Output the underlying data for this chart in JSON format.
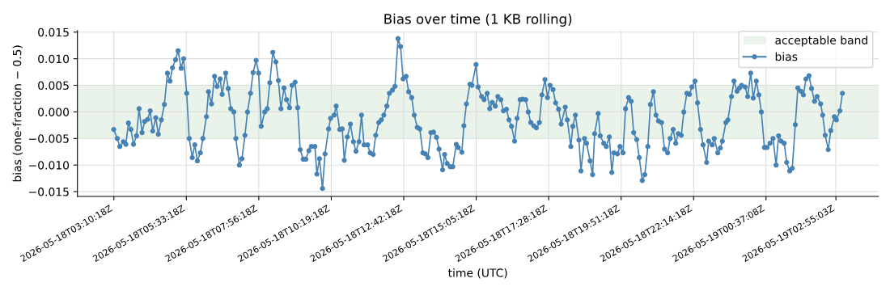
{
  "chart_data": {
    "type": "line",
    "title": "Bias over time (1 KB rolling)",
    "xlabel": "time (UTC)",
    "ylabel": "bias (one-fraction − 0.5)",
    "xlim": [
      "2026-05-18T01:58:24",
      "2026-05-19T04:19"
    ],
    "xticks": [
      {
        "value": "2026-05-18T03:10:18",
        "label": "2026-05-18T03:10:18Z"
      },
      {
        "value": "2026-05-18T05:33:18",
        "label": "2026-05-18T05:33:18Z"
      },
      {
        "value": "2026-05-18T07:56:18",
        "label": "2026-05-18T07:56:18Z"
      },
      {
        "value": "2026-05-18T10:19:18",
        "label": "2026-05-18T10:19:18Z"
      },
      {
        "value": "2026-05-18T12:42:18",
        "label": "2026-05-18T12:42:18Z"
      },
      {
        "value": "2026-05-18T15:05:18",
        "label": "2026-05-18T15:05:18Z"
      },
      {
        "value": "2026-05-18T17:28:18",
        "label": "2026-05-18T17:28:18Z"
      },
      {
        "value": "2026-05-18T19:51:18",
        "label": "2026-05-18T19:51:18Z"
      },
      {
        "value": "2026-05-18T22:14:18",
        "label": "2026-05-18T22:14:18Z"
      },
      {
        "value": "2026-05-19T00:37:08",
        "label": "2026-05-19T00:37:08Z"
      },
      {
        "value": "2026-05-19T02:55:03",
        "label": "2026-05-19T02:55:03Z"
      }
    ],
    "ylim": [
      -0.0159,
      0.0153
    ],
    "yticks": [
      {
        "value": -0.015,
        "label": "−0.015"
      },
      {
        "value": -0.01,
        "label": "−0.010"
      },
      {
        "value": -0.005,
        "label": "−0.005"
      },
      {
        "value": 0,
        "label": "0.000"
      },
      {
        "value": 0.005,
        "label": "0.005"
      },
      {
        "value": 0.01,
        "label": "0.010"
      },
      {
        "value": 0.015,
        "label": "0.015"
      }
    ],
    "grid": true,
    "legend": "top right",
    "marker": "circle",
    "line_style": "solid",
    "bands": [
      {
        "axis": "y",
        "from": -0.005,
        "to": 0.005,
        "label": "acceptable band",
        "color": "#e9f3e9"
      }
    ],
    "series": [
      {
        "name": "bias",
        "color": "#4682b4",
        "x": [
          "2026-05-18T03:10",
          "2026-05-18T03:17",
          "2026-05-18T03:22",
          "2026-05-18T03:29",
          "2026-05-18T03:34",
          "2026-05-18T03:39",
          "2026-05-18T03:44",
          "2026-05-18T03:49",
          "2026-05-18T03:55",
          "2026-05-18T04:00",
          "2026-05-18T04:06",
          "2026-05-18T04:11",
          "2026-05-18T04:17",
          "2026-05-18T04:22",
          "2026-05-18T04:27",
          "2026-05-18T04:33",
          "2026-05-18T04:38",
          "2026-05-18T04:44",
          "2026-05-18T04:50",
          "2026-05-18T04:56",
          "2026-05-18T05:01",
          "2026-05-18T05:06",
          "2026-05-18T05:12",
          "2026-05-18T05:17",
          "2026-05-18T05:23",
          "2026-05-18T05:28",
          "2026-05-18T05:34",
          "2026-05-18T05:39",
          "2026-05-18T05:45",
          "2026-05-18T05:50",
          "2026-05-18T05:55",
          "2026-05-18T06:01",
          "2026-05-18T06:06",
          "2026-05-18T06:13",
          "2026-05-18T06:17",
          "2026-05-18T06:23",
          "2026-05-18T06:29",
          "2026-05-18T06:34",
          "2026-05-18T06:40",
          "2026-05-18T06:44",
          "2026-05-18T06:51",
          "2026-05-18T06:56",
          "2026-05-18T07:01",
          "2026-05-18T07:07",
          "2026-05-18T07:11",
          "2026-05-18T07:18",
          "2026-05-18T07:23",
          "2026-05-18T07:29",
          "2026-05-18T07:34",
          "2026-05-18T07:40",
          "2026-05-18T07:45",
          "2026-05-18T07:51",
          "2026-05-18T07:56",
          "2026-05-18T08:01",
          "2026-05-18T08:08",
          "2026-05-18T08:13",
          "2026-05-18T08:18",
          "2026-05-18T08:24",
          "2026-05-18T08:30",
          "2026-05-18T08:35",
          "2026-05-18T08:40",
          "2026-05-18T08:46",
          "2026-05-18T08:51",
          "2026-05-18T08:57",
          "2026-05-18T09:02",
          "2026-05-18T09:08",
          "2026-05-18T09:13",
          "2026-05-18T09:18",
          "2026-05-18T09:24",
          "2026-05-18T09:29",
          "2026-05-18T09:35",
          "2026-05-18T09:40",
          "2026-05-18T09:47",
          "2026-05-18T09:51",
          "2026-05-18T09:56",
          "2026-05-18T10:02",
          "2026-05-18T10:07",
          "2026-05-18T10:14",
          "2026-05-18T10:18",
          "2026-05-18T10:25",
          "2026-05-18T10:29",
          "2026-05-18T10:36",
          "2026-05-18T10:41",
          "2026-05-18T10:45",
          "2026-05-18T10:51",
          "2026-05-18T10:57",
          "2026-05-18T11:03",
          "2026-05-18T11:08",
          "2026-05-18T11:14",
          "2026-05-18T11:19",
          "2026-05-18T11:24",
          "2026-05-18T11:31",
          "2026-05-18T11:36",
          "2026-05-18T11:42",
          "2026-05-18T11:47",
          "2026-05-18T11:53",
          "2026-05-18T11:58",
          "2026-05-18T12:03",
          "2026-05-18T12:09",
          "2026-05-18T12:14",
          "2026-05-18T12:20",
          "2026-05-18T12:25",
          "2026-05-18T12:31",
          "2026-05-18T12:36",
          "2026-05-18T12:41",
          "2026-05-18T12:47",
          "2026-05-18T12:52",
          "2026-05-18T12:58",
          "2026-05-18T13:03",
          "2026-05-18T13:09",
          "2026-05-18T13:14",
          "2026-05-18T13:20",
          "2026-05-18T13:25",
          "2026-05-18T13:30",
          "2026-05-18T13:36",
          "2026-05-18T13:41",
          "2026-05-18T13:47",
          "2026-05-18T13:52",
          "2026-05-18T13:59",
          "2026-05-18T14:03",
          "2026-05-18T14:08",
          "2026-05-18T14:14",
          "2026-05-18T14:19",
          "2026-05-18T14:26",
          "2026-05-18T14:30",
          "2026-05-18T14:37",
          "2026-05-18T14:41",
          "2026-05-18T14:46",
          "2026-05-18T14:53",
          "2026-05-18T14:57",
          "2026-05-18T15:05",
          "2026-05-18T15:09",
          "2026-05-18T15:16",
          "2026-05-18T15:21",
          "2026-05-18T15:27",
          "2026-05-18T15:32",
          "2026-05-18T15:37",
          "2026-05-18T15:43",
          "2026-05-18T15:48",
          "2026-05-18T15:54",
          "2026-05-18T15:59",
          "2026-05-18T16:05",
          "2026-05-18T16:10",
          "2026-05-18T16:15",
          "2026-05-18T16:21",
          "2026-05-18T16:26",
          "2026-05-18T16:32",
          "2026-05-18T16:37",
          "2026-05-18T16:43",
          "2026-05-18T16:48",
          "2026-05-18T16:53",
          "2026-05-18T16:59",
          "2026-05-18T17:04",
          "2026-05-18T17:10",
          "2026-05-18T17:15",
          "2026-05-18T17:21",
          "2026-05-18T17:26",
          "2026-05-18T17:31",
          "2026-05-18T17:37",
          "2026-05-18T17:42",
          "2026-05-18T17:48",
          "2026-05-18T17:53",
          "2026-05-18T18:01",
          "2026-05-18T18:05",
          "2026-05-18T18:12",
          "2026-05-18T18:16",
          "2026-05-18T18:21",
          "2026-05-18T18:28",
          "2026-05-18T18:32",
          "2026-05-18T18:39",
          "2026-05-18T18:43",
          "2026-05-18T18:50",
          "2026-05-18T18:55",
          "2026-05-18T18:59",
          "2026-05-18T19:06",
          "2026-05-18T19:10",
          "2026-05-18T19:17",
          "2026-05-18T19:22",
          "2026-05-18T19:28",
          "2026-05-18T19:33",
          "2026-05-18T19:37",
          "2026-05-18T19:44",
          "2026-05-18T19:49",
          "2026-05-18T19:55",
          "2026-05-18T20:00",
          "2026-05-18T20:06",
          "2026-05-18T20:11",
          "2026-05-18T20:16",
          "2026-05-18T20:22",
          "2026-05-18T20:27",
          "2026-05-18T20:33",
          "2026-05-18T20:38",
          "2026-05-18T20:44",
          "2026-05-18T20:49",
          "2026-05-18T20:55",
          "2026-05-18T21:00",
          "2026-05-18T21:05",
          "2026-05-18T21:11",
          "2026-05-18T21:17",
          "2026-05-18T21:23",
          "2026-05-18T21:28",
          "2026-05-18T21:34",
          "2026-05-18T21:39",
          "2026-05-18T21:44",
          "2026-05-18T21:50",
          "2026-05-18T21:55",
          "2026-05-18T22:01",
          "2026-05-18T22:06",
          "2026-05-18T22:11",
          "2026-05-18T22:17",
          "2026-05-18T22:22",
          "2026-05-18T22:28",
          "2026-05-18T22:33",
          "2026-05-18T22:40",
          "2026-05-18T22:44",
          "2026-05-18T22:51",
          "2026-05-18T22:55",
          "2026-05-18T23:02",
          "2026-05-18T23:07",
          "2026-05-18T23:11",
          "2026-05-18T23:18",
          "2026-05-18T23:22",
          "2026-05-18T23:29",
          "2026-05-18T23:34",
          "2026-05-18T23:40",
          "2026-05-18T23:45",
          "2026-05-18T23:49",
          "2026-05-18T23:56",
          "2026-05-19T00:01",
          "2026-05-19T00:07",
          "2026-05-19T00:12",
          "2026-05-19T00:18",
          "2026-05-19T00:23",
          "2026-05-19T00:28",
          "2026-05-19T00:34",
          "2026-05-19T00:39",
          "2026-05-19T00:45",
          "2026-05-19T00:51",
          "2026-05-19T00:57",
          "2026-05-19T01:02",
          "2026-05-19T01:07",
          "2026-05-19T01:13",
          "2026-05-19T01:18",
          "2026-05-19T01:24",
          "2026-05-19T01:29",
          "2026-05-19T01:35",
          "2026-05-19T01:40",
          "2026-05-19T01:46",
          "2026-05-19T01:51",
          "2026-05-19T01:56",
          "2026-05-19T02:02",
          "2026-05-19T02:07",
          "2026-05-19T02:13",
          "2026-05-19T02:18",
          "2026-05-19T02:25",
          "2026-05-19T02:29",
          "2026-05-19T02:34",
          "2026-05-19T02:40",
          "2026-05-19T02:45",
          "2026-05-19T02:52",
          "2026-05-19T02:56",
          "2026-05-19T03:03",
          "2026-05-19T03:08"
        ],
        "values": [
          -0.0033,
          -0.005,
          -0.0065,
          -0.0056,
          -0.0061,
          -0.0021,
          -0.0033,
          -0.0061,
          -0.0045,
          0.0006,
          -0.0039,
          -0.0018,
          -0.0014,
          0.0002,
          -0.0036,
          -0.0011,
          -0.0042,
          -0.0015,
          0.0014,
          0.0073,
          0.0058,
          0.0083,
          0.0098,
          0.0115,
          0.0082,
          0.01,
          0.0035,
          -0.005,
          -0.0086,
          -0.0062,
          -0.0092,
          -0.0077,
          -0.005,
          -0.0009,
          0.0038,
          0.0015,
          0.0067,
          0.0048,
          0.0062,
          0.0033,
          0.0073,
          0.0044,
          0.0006,
          0.0,
          -0.005,
          -0.01,
          -0.0088,
          -0.0044,
          0.0,
          0.0035,
          0.0074,
          0.0097,
          0.0073,
          -0.0027,
          0.0,
          0.0006,
          0.0055,
          0.0112,
          0.0094,
          0.0059,
          0.0006,
          0.0045,
          0.0023,
          0.0008,
          0.005,
          0.0056,
          0.0008,
          -0.0071,
          -0.0089,
          -0.0089,
          -0.0073,
          -0.0065,
          -0.0065,
          -0.0117,
          -0.0088,
          -0.0144,
          -0.0079,
          -0.0032,
          -0.0012,
          -0.0006,
          0.0011,
          -0.0033,
          -0.0032,
          -0.0091,
          -0.0047,
          -0.0023,
          -0.0056,
          -0.0074,
          -0.0056,
          -0.0006,
          -0.0062,
          -0.0062,
          -0.0077,
          -0.008,
          -0.0044,
          -0.002,
          -0.0015,
          -0.0006,
          0.0011,
          0.0035,
          0.0041,
          0.0048,
          0.0138,
          0.0123,
          0.0062,
          0.0067,
          0.0038,
          0.0027,
          -0.0006,
          -0.0029,
          -0.0032,
          -0.0077,
          -0.0079,
          -0.0086,
          -0.0039,
          -0.0038,
          -0.0048,
          -0.007,
          -0.0109,
          -0.008,
          -0.0097,
          -0.0103,
          -0.0103,
          -0.0061,
          -0.0067,
          -0.0076,
          -0.0026,
          0.0015,
          0.0052,
          0.005,
          0.0089,
          0.0047,
          0.0029,
          0.0023,
          0.0035,
          0.0006,
          0.0018,
          0.0011,
          0.0029,
          0.0023,
          0.0002,
          0.0005,
          -0.0015,
          -0.0027,
          -0.0055,
          -0.0012,
          0.0023,
          0.0024,
          0.0023,
          0.0,
          -0.002,
          -0.0026,
          -0.003,
          -0.002,
          0.0032,
          0.0061,
          0.0027,
          0.005,
          0.0042,
          0.0017,
          0.0005,
          -0.0023,
          0.0009,
          -0.0015,
          -0.0065,
          -0.0027,
          -0.0006,
          -0.0053,
          -0.0111,
          -0.005,
          -0.0059,
          -0.0092,
          -0.0118,
          -0.0041,
          -0.0003,
          -0.0045,
          -0.0059,
          -0.0065,
          -0.0047,
          -0.0114,
          -0.0077,
          -0.0079,
          -0.0065,
          -0.0077,
          0.0006,
          0.0027,
          0.002,
          -0.0039,
          -0.0052,
          -0.0086,
          -0.0129,
          -0.0118,
          -0.0065,
          0.0014,
          0.0038,
          -0.0006,
          -0.0017,
          -0.002,
          -0.007,
          -0.0077,
          -0.005,
          -0.0033,
          -0.0059,
          -0.0041,
          -0.0044,
          0.0,
          0.0035,
          0.0033,
          0.0047,
          0.0058,
          0.0017,
          -0.0033,
          -0.0062,
          -0.0095,
          -0.0055,
          -0.0062,
          -0.005,
          -0.0077,
          -0.0068,
          -0.0055,
          -0.002,
          -0.0015,
          0.0029,
          0.0058,
          0.0039,
          0.0045,
          0.005,
          0.0047,
          0.0029,
          0.0073,
          0.0026,
          0.0058,
          0.0032,
          0.0,
          -0.0067,
          -0.0067,
          -0.0059,
          -0.005,
          -0.01,
          -0.0045,
          -0.0055,
          -0.0059,
          -0.0095,
          -0.0111,
          -0.0106,
          -0.0024,
          0.0045,
          0.0039,
          0.0032,
          0.0062,
          0.0068,
          0.0044,
          0.002,
          0.0029,
          0.0015,
          -0.0006,
          -0.0044,
          -0.0071,
          -0.0035,
          -0.0009,
          -0.0015,
          0.0002,
          0.0035
        ]
      }
    ]
  }
}
